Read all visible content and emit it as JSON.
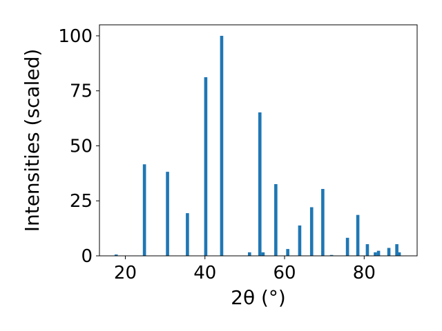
{
  "chart_data": {
    "type": "bar",
    "xlabel": "2θ (°)",
    "ylabel": "Intensities (scaled)",
    "xlim": [
      13.5,
      93.3
    ],
    "ylim": [
      0,
      105
    ],
    "xticks": [
      20,
      40,
      60,
      80
    ],
    "yticks": [
      0,
      25,
      50,
      75,
      100
    ],
    "bar_color": "#1f77b4",
    "bar_width": 0.8,
    "x": [
      17.7,
      24.8,
      30.6,
      35.6,
      40.2,
      44.2,
      51.2,
      53.8,
      54.6,
      57.8,
      60.8,
      63.8,
      66.8,
      69.6,
      71.8,
      75.8,
      78.4,
      80.8,
      82.8,
      83.6,
      86.2,
      88.2,
      88.8
    ],
    "values": [
      0.6,
      41.6,
      38.2,
      19.4,
      81.2,
      100.0,
      1.6,
      65.2,
      1.6,
      32.6,
      3.1,
      13.8,
      22.1,
      30.4,
      0.4,
      8.2,
      18.6,
      5.3,
      1.6,
      2.3,
      3.6,
      5.3,
      1.6
    ]
  }
}
